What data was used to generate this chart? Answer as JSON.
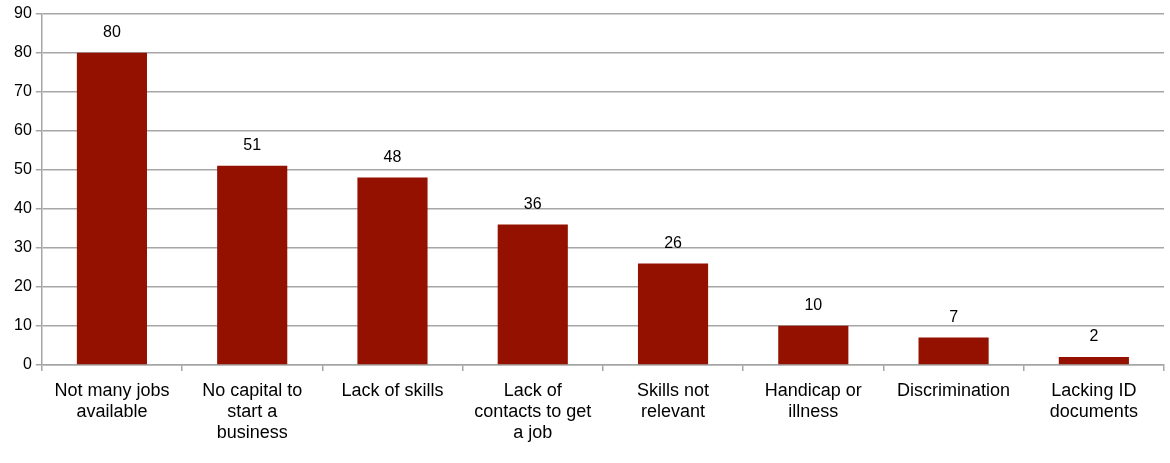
{
  "chart_data": {
    "type": "bar",
    "categories": [
      "Not many jobs available",
      "No capital to start a business",
      "Lack of skills",
      "Lack of contacts to get a job",
      "Skills not relevant",
      "Handicap or illness",
      "Discrimination",
      "Lacking ID documents"
    ],
    "values": [
      80,
      51,
      48,
      36,
      26,
      10,
      7,
      2
    ],
    "color": "#941100",
    "ylim": [
      0,
      90
    ],
    "yticks": [
      0,
      10,
      20,
      30,
      40,
      50,
      60,
      70,
      80,
      90
    ],
    "grid": "y",
    "data_labels": true
  }
}
